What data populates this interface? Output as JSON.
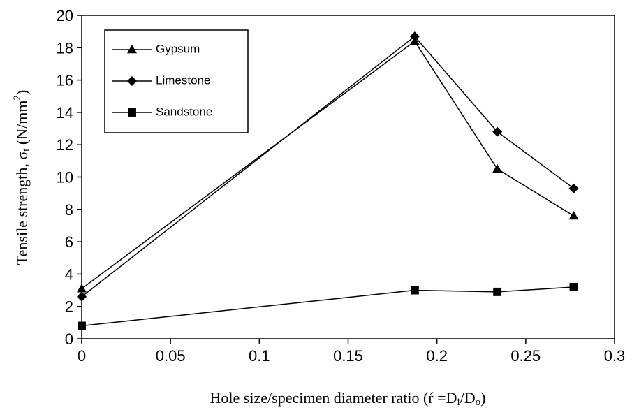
{
  "chart_data": {
    "type": "line",
    "y_label_parts": [
      "Tensile strength, σ",
      "t",
      " (N/mm",
      "2",
      ")"
    ],
    "x_label_parts": [
      "Hole size/specimen diameter ratio (ŕ =D",
      "i",
      "/D",
      "o",
      ")"
    ],
    "x": [
      0,
      0.1875,
      0.234,
      0.277
    ],
    "series": [
      {
        "name": "Gypsum",
        "color": "#000000",
        "marker": "triangle",
        "values": [
          3.1,
          18.4,
          10.5,
          7.6
        ]
      },
      {
        "name": "Limestone",
        "color": "#000000",
        "marker": "diamond",
        "values": [
          2.6,
          18.7,
          12.8,
          9.3
        ]
      },
      {
        "name": "Sandstone",
        "color": "#000000",
        "marker": "square",
        "values": [
          0.8,
          3.0,
          2.9,
          3.2
        ]
      }
    ],
    "xlim": [
      0,
      0.3
    ],
    "xticks": [
      0,
      0.05,
      0.1,
      0.15,
      0.2,
      0.25,
      0.3
    ],
    "ylim": [
      0,
      20
    ],
    "yticks": [
      0,
      2,
      4,
      6,
      8,
      10,
      12,
      14,
      16,
      18,
      20
    ],
    "grid": false,
    "legend_position": "upper left"
  }
}
